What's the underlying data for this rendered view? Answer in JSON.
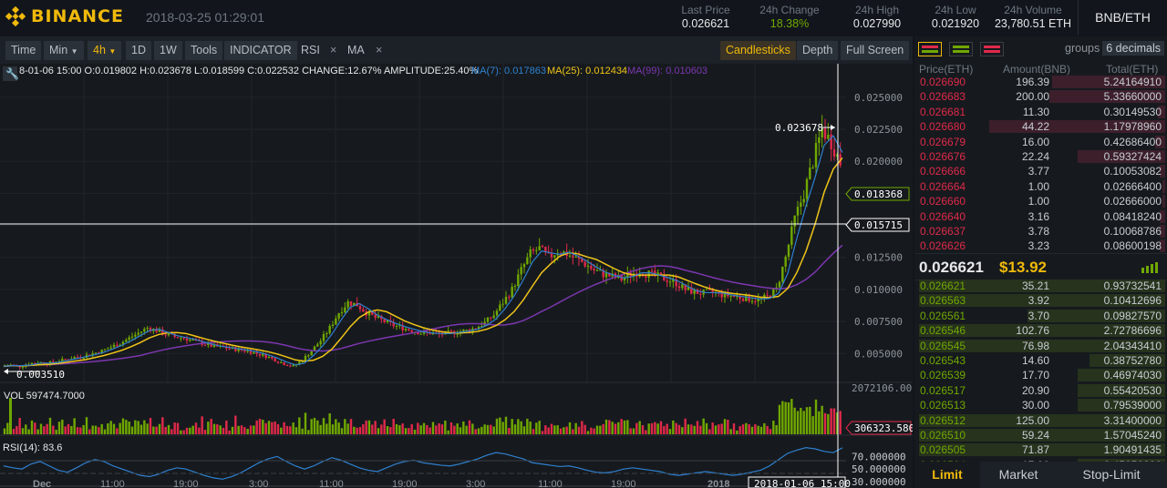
{
  "brand": {
    "name": "BINANCE",
    "logo_icon": "binance-diamond-icon",
    "accent": "#f0b90b"
  },
  "datetime": "2018-03-25 01:29:01",
  "ticker": {
    "last_price": {
      "label": "Last Price",
      "value": "0.026621"
    },
    "change": {
      "label": "24h Change",
      "value": "18.38%"
    },
    "high": {
      "label": "24h High",
      "value": "0.027990"
    },
    "low": {
      "label": "24h Low",
      "value": "0.021920"
    },
    "volume": {
      "label": "24h Volume",
      "value": "23,780.51 ETH"
    }
  },
  "pair": "BNB/ETH",
  "toolbar": {
    "time": "Time",
    "min": "Min",
    "interval": "4h",
    "d1": "1D",
    "w1": "1W",
    "tools": "Tools",
    "indicator": "INDICATOR",
    "rsi": "RSI",
    "ma": "MA",
    "close_glyph": "×",
    "candlesticks": "Candlesticks",
    "depth": "Depth",
    "fullscreen": "Full Screen"
  },
  "chart_info": {
    "ohlc": "8-01-06 15:00   O:0.019802 H:0.023678 L:0.018599 C:0.022532 CHANGE:12.67% AMPLITUDE:25.40%",
    "ma7": "MA(7): 0.017863",
    "ma25": "MA(25): 0.012434",
    "ma99": "MA(99): 0.010603",
    "high_marker": "0.023678",
    "low_marker": "0.003510",
    "price_tag": "0.018368",
    "crosshair_tag": "0.015715",
    "vol_label": "VOL 597474.7000",
    "vol_max": "2072106.00",
    "vol_tag": "306323.580",
    "rsi_label": "RSI(14): 83.6",
    "crosshair_time": "2018-01-06 15:00"
  },
  "chart_data": {
    "type": "candlestick",
    "price_axis": {
      "ticks": [
        "0.025000",
        "0.022500",
        "0.020000",
        "0.017500",
        "0.015000",
        "0.012500",
        "0.010000",
        "0.007500",
        "0.005000"
      ],
      "range": [
        0.0031,
        0.0262
      ]
    },
    "rsi_axis": {
      "ticks": [
        "70.000000",
        "50.000000",
        "30.000000"
      ],
      "range": [
        20,
        95
      ]
    },
    "time_labels": [
      "Dec",
      "11:00",
      "19:00",
      "3:00",
      "11:00",
      "19:00",
      "3:00",
      "11:00",
      "19:00",
      "2018"
    ],
    "close": [
      0.004,
      0.0041,
      0.004,
      0.0042,
      0.0043,
      0.0042,
      0.0044,
      0.0045,
      0.0047,
      0.0048,
      0.005,
      0.0052,
      0.0055,
      0.0058,
      0.0062,
      0.0066,
      0.007,
      0.0068,
      0.0065,
      0.0063,
      0.0062,
      0.006,
      0.0058,
      0.0056,
      0.0055,
      0.0054,
      0.0053,
      0.0052,
      0.005,
      0.0048,
      0.0045,
      0.0042,
      0.004,
      0.0045,
      0.0052,
      0.006,
      0.007,
      0.0082,
      0.009,
      0.0088,
      0.0082,
      0.0078,
      0.0075,
      0.0072,
      0.007,
      0.0068,
      0.0066,
      0.0066,
      0.0065,
      0.0066,
      0.0067,
      0.0068,
      0.007,
      0.0074,
      0.008,
      0.009,
      0.01,
      0.0115,
      0.0128,
      0.0132,
      0.0125,
      0.013,
      0.0128,
      0.0124,
      0.012,
      0.0115,
      0.0112,
      0.011,
      0.0108,
      0.0112,
      0.0114,
      0.0112,
      0.011,
      0.0108,
      0.0105,
      0.01,
      0.0098,
      0.0097,
      0.0098,
      0.0096,
      0.0095,
      0.0094,
      0.0093,
      0.0092,
      0.0094,
      0.01,
      0.0125,
      0.0155,
      0.0175,
      0.02,
      0.0225,
      0.0215,
      0.0199
    ],
    "rsi": [
      55,
      52,
      50,
      58,
      62,
      55,
      48,
      45,
      52,
      60,
      65,
      62,
      55,
      50,
      45,
      40,
      38,
      42,
      48,
      52,
      50,
      45,
      40,
      36,
      34,
      38,
      44,
      52,
      60,
      66,
      70,
      62,
      55,
      50,
      55,
      62,
      68,
      64,
      58,
      52,
      48,
      46,
      52,
      58,
      62,
      64,
      60,
      58,
      56,
      55,
      58,
      62,
      66,
      72,
      76,
      74,
      70,
      66,
      60,
      58,
      56,
      54,
      55,
      52,
      48,
      45,
      44,
      46,
      50,
      52,
      50,
      48,
      46,
      42,
      40,
      42,
      44,
      46,
      44,
      42,
      40,
      42,
      45,
      48,
      55,
      65,
      75,
      80,
      84,
      82,
      78,
      76,
      83.6
    ]
  },
  "orderbook": {
    "groups_label": "groups",
    "groups_value": "6 decimals",
    "headers": {
      "price": "Price(ETH)",
      "amount": "Amount(BNB)",
      "total": "Total(ETH)"
    },
    "asks": [
      {
        "price": "0.026690",
        "amount": "196.39",
        "total": "5.24164910",
        "d": 0.45
      },
      {
        "price": "0.026683",
        "amount": "200.00",
        "total": "5.33660000",
        "d": 0.46
      },
      {
        "price": "0.026681",
        "amount": "11.30",
        "total": "0.30149530",
        "d": 0.03
      },
      {
        "price": "0.026680",
        "amount": "44.22",
        "total": "1.17978960",
        "d": 0.7
      },
      {
        "price": "0.026679",
        "amount": "16.00",
        "total": "0.42686400",
        "d": 0.04
      },
      {
        "price": "0.026676",
        "amount": "22.24",
        "total": "0.59327424",
        "d": 0.35
      },
      {
        "price": "0.026666",
        "amount": "3.77",
        "total": "0.10053082",
        "d": 0.02
      },
      {
        "price": "0.026664",
        "amount": "1.00",
        "total": "0.02666400",
        "d": 0.01
      },
      {
        "price": "0.026660",
        "amount": "1.00",
        "total": "0.02666000",
        "d": 0.01
      },
      {
        "price": "0.026640",
        "amount": "3.16",
        "total": "0.08418240",
        "d": 0.02
      },
      {
        "price": "0.026637",
        "amount": "3.78",
        "total": "0.10068786",
        "d": 0.02
      },
      {
        "price": "0.026626",
        "amount": "3.23",
        "total": "0.08600198",
        "d": 0.02
      },
      {
        "price": "0.026625",
        "amount": "1.00",
        "total": "0.02662500",
        "d": 0.01
      }
    ],
    "last": {
      "price": "0.026621",
      "usd": "$13.92"
    },
    "bids": [
      {
        "price": "0.026621",
        "amount": "35.21",
        "total": "0.93732541",
        "d": 0.98
      },
      {
        "price": "0.026563",
        "amount": "3.92",
        "total": "0.10412696",
        "d": 0.98
      },
      {
        "price": "0.026561",
        "amount": "3.70",
        "total": "0.09827570",
        "d": 0.55
      },
      {
        "price": "0.026546",
        "amount": "102.76",
        "total": "2.72786696",
        "d": 0.98
      },
      {
        "price": "0.026545",
        "amount": "76.98",
        "total": "2.04343410",
        "d": 0.98
      },
      {
        "price": "0.026543",
        "amount": "14.60",
        "total": "0.38752780",
        "d": 0.3
      },
      {
        "price": "0.026539",
        "amount": "17.70",
        "total": "0.46974030",
        "d": 0.35
      },
      {
        "price": "0.026517",
        "amount": "20.90",
        "total": "0.55420530",
        "d": 0.35
      },
      {
        "price": "0.026513",
        "amount": "30.00",
        "total": "0.79539000",
        "d": 0.35
      },
      {
        "price": "0.026512",
        "amount": "125.00",
        "total": "3.31400000",
        "d": 0.98
      },
      {
        "price": "0.026510",
        "amount": "59.24",
        "total": "1.57045240",
        "d": 0.98
      },
      {
        "price": "0.026505",
        "amount": "71.87",
        "total": "1.90491435",
        "d": 0.98
      },
      {
        "price": "0.026504",
        "amount": "17.00",
        "total": "0.45056800",
        "d": 0.35
      }
    ]
  },
  "order_tabs": [
    "Limit",
    "Market",
    "Stop-Limit"
  ],
  "colors": {
    "up": "#70a800",
    "down": "#e0294a",
    "ma7": "#2f80d0",
    "ma25": "#f0c419",
    "ma99": "#7d36b0"
  }
}
